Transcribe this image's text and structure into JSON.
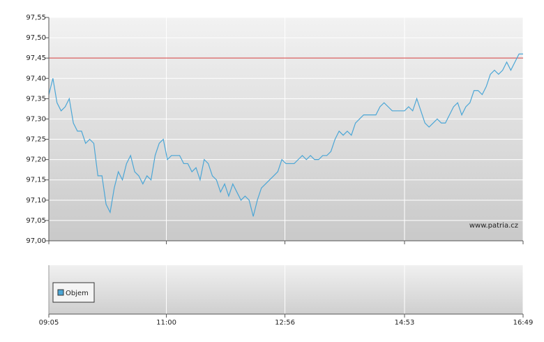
{
  "chart_data": [
    {
      "type": "line",
      "xlim": [
        545,
        1009
      ],
      "xticks": [
        {
          "value": 545,
          "label": "09:05"
        },
        {
          "value": 660,
          "label": "11:00"
        },
        {
          "value": 776,
          "label": "12:56"
        },
        {
          "value": 893,
          "label": "14:53"
        },
        {
          "value": 1009,
          "label": "16:49"
        }
      ],
      "ylim": [
        97.0,
        97.55
      ],
      "yticks": [
        {
          "value": 97.0,
          "label": "97,00"
        },
        {
          "value": 97.05,
          "label": "97,05"
        },
        {
          "value": 97.1,
          "label": "97,10"
        },
        {
          "value": 97.15,
          "label": "97,15"
        },
        {
          "value": 97.2,
          "label": "97,20"
        },
        {
          "value": 97.25,
          "label": "97,25"
        },
        {
          "value": 97.3,
          "label": "97,30"
        },
        {
          "value": 97.35,
          "label": "97,35"
        },
        {
          "value": 97.4,
          "label": "97,40"
        },
        {
          "value": 97.45,
          "label": "97,45"
        },
        {
          "value": 97.5,
          "label": "97,50"
        },
        {
          "value": 97.55,
          "label": "97,55"
        }
      ],
      "grid": true,
      "reference_line": 97.45,
      "reference_color": "#d03a3a",
      "annotation": "www.patria.cz",
      "x": [
        545,
        549,
        553,
        557,
        561,
        565,
        569,
        573,
        577,
        581,
        585,
        589,
        593,
        597,
        601,
        605,
        609,
        613,
        617,
        621,
        625,
        629,
        633,
        637,
        641,
        645,
        649,
        653,
        657,
        661,
        665,
        669,
        673,
        677,
        681,
        685,
        689,
        693,
        697,
        701,
        705,
        709,
        713,
        717,
        721,
        725,
        729,
        733,
        737,
        741,
        745,
        749,
        753,
        757,
        761,
        765,
        769,
        773,
        777,
        781,
        785,
        789,
        793,
        797,
        801,
        805,
        809,
        813,
        817,
        821,
        825,
        829,
        833,
        837,
        841,
        845,
        849,
        853,
        857,
        861,
        865,
        869,
        873,
        877,
        881,
        885,
        889,
        893,
        897,
        901,
        905,
        909,
        913,
        917,
        921,
        925,
        929,
        933,
        937,
        941,
        945,
        949,
        953,
        957,
        961,
        965,
        969,
        973,
        977,
        981,
        985,
        989,
        993,
        997,
        1001,
        1005,
        1009
      ],
      "series": [
        {
          "color": "#4ba6d6",
          "values": [
            97.36,
            97.4,
            97.34,
            97.32,
            97.33,
            97.35,
            97.29,
            97.27,
            97.27,
            97.24,
            97.25,
            97.24,
            97.16,
            97.16,
            97.09,
            97.07,
            97.13,
            97.17,
            97.15,
            97.19,
            97.21,
            97.17,
            97.16,
            97.14,
            97.16,
            97.15,
            97.21,
            97.24,
            97.25,
            97.2,
            97.21,
            97.21,
            97.21,
            97.19,
            97.19,
            97.17,
            97.18,
            97.15,
            97.2,
            97.19,
            97.16,
            97.15,
            97.12,
            97.14,
            97.11,
            97.14,
            97.12,
            97.1,
            97.11,
            97.1,
            97.06,
            97.1,
            97.13,
            97.14,
            97.15,
            97.16,
            97.17,
            97.2,
            97.19,
            97.19,
            97.19,
            97.2,
            97.21,
            97.2,
            97.21,
            97.2,
            97.2,
            97.21,
            97.21,
            97.22,
            97.25,
            97.27,
            97.26,
            97.27,
            97.26,
            97.29,
            97.3,
            97.31,
            97.31,
            97.31,
            97.31,
            97.33,
            97.34,
            97.33,
            97.32,
            97.32,
            97.32,
            97.32,
            97.33,
            97.32,
            97.35,
            97.32,
            97.29,
            97.28,
            97.29,
            97.3,
            97.29,
            97.29,
            97.31,
            97.33,
            97.34,
            97.31,
            97.33,
            97.34,
            97.37,
            97.37,
            97.36,
            97.38,
            97.41,
            97.42,
            97.41,
            97.42,
            97.44,
            97.42,
            97.44,
            97.46,
            97.46
          ]
        }
      ]
    },
    {
      "type": "bar",
      "legend": "upper left",
      "series": [
        {
          "name": "Objem",
          "color": "#4ba6d6",
          "values": []
        }
      ]
    }
  ]
}
